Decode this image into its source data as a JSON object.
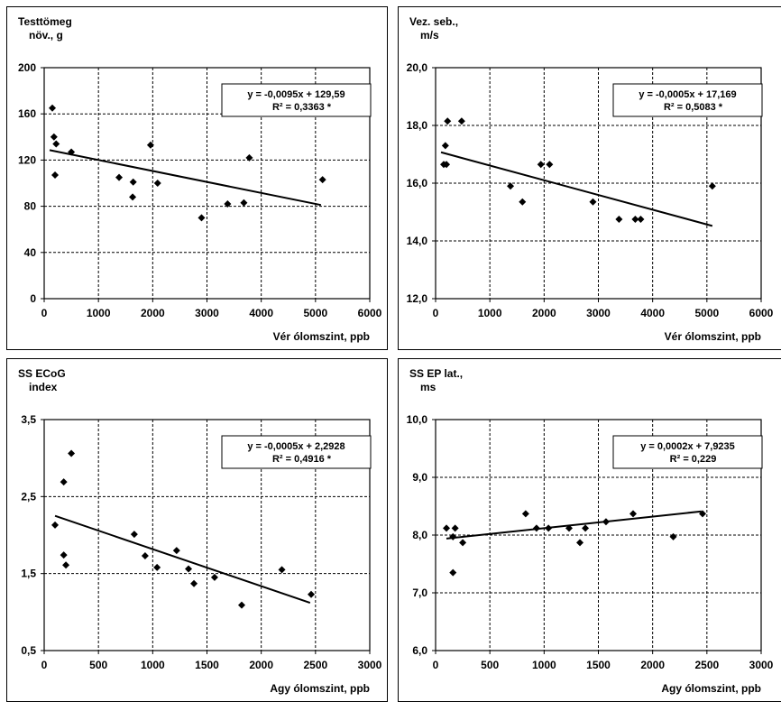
{
  "chart_data": [
    {
      "type": "scatter",
      "ylabel_lines": [
        "Testtömeg",
        "növ., g"
      ],
      "xlabel": "Vér ólomszint, ppb",
      "xlim": [
        0,
        6000
      ],
      "ylim": [
        0,
        200
      ],
      "xticks": [
        0,
        1000,
        2000,
        3000,
        4000,
        5000,
        6000
      ],
      "yticks": [
        0,
        40,
        80,
        120,
        160,
        200
      ],
      "xtick_labels": [
        "0",
        "1000",
        "2000",
        "3000",
        "4000",
        "5000",
        "6000"
      ],
      "ytick_labels": [
        "0",
        "40",
        "80",
        "120",
        "160",
        "200"
      ],
      "grid": true,
      "points": [
        {
          "x": 150,
          "y": 165
        },
        {
          "x": 180,
          "y": 140
        },
        {
          "x": 220,
          "y": 134
        },
        {
          "x": 200,
          "y": 107
        },
        {
          "x": 500,
          "y": 127
        },
        {
          "x": 1380,
          "y": 105
        },
        {
          "x": 1640,
          "y": 101
        },
        {
          "x": 1630,
          "y": 88
        },
        {
          "x": 1960,
          "y": 133
        },
        {
          "x": 2090,
          "y": 100
        },
        {
          "x": 2900,
          "y": 70
        },
        {
          "x": 3380,
          "y": 82
        },
        {
          "x": 3680,
          "y": 83
        },
        {
          "x": 3780,
          "y": 122
        },
        {
          "x": 5130,
          "y": 103
        }
      ],
      "trendline": {
        "x": [
          100,
          5100
        ],
        "y": [
          128.6,
          81.1
        ]
      },
      "equation": "y = -0,0095x + 129,59",
      "r2": "R² = 0,3363 *",
      "annotation_box": "top-right"
    },
    {
      "type": "scatter",
      "ylabel_lines": [
        "Vez. seb.,",
        "m/s"
      ],
      "xlabel": "Vér ólomszint, ppb",
      "xlim": [
        0,
        6000
      ],
      "ylim": [
        12,
        20
      ],
      "xticks": [
        0,
        1000,
        2000,
        3000,
        4000,
        5000,
        6000
      ],
      "yticks": [
        12,
        14,
        16,
        18,
        20
      ],
      "xtick_labels": [
        "0",
        "1000",
        "2000",
        "3000",
        "4000",
        "5000",
        "6000"
      ],
      "ytick_labels": [
        "12,0",
        "14,0",
        "16,0",
        "18,0",
        "20,0"
      ],
      "grid": true,
      "points": [
        {
          "x": 150,
          "y": 16.65
        },
        {
          "x": 200,
          "y": 16.65
        },
        {
          "x": 180,
          "y": 17.3
        },
        {
          "x": 220,
          "y": 18.15
        },
        {
          "x": 480,
          "y": 18.15
        },
        {
          "x": 1380,
          "y": 15.9
        },
        {
          "x": 1600,
          "y": 15.35
        },
        {
          "x": 1940,
          "y": 16.65
        },
        {
          "x": 2100,
          "y": 16.65
        },
        {
          "x": 2900,
          "y": 15.35
        },
        {
          "x": 3380,
          "y": 14.75
        },
        {
          "x": 3680,
          "y": 14.75
        },
        {
          "x": 3780,
          "y": 14.75
        },
        {
          "x": 5100,
          "y": 15.9
        }
      ],
      "trendline": {
        "x": [
          100,
          5100
        ],
        "y": [
          17.07,
          14.52
        ]
      },
      "equation": "y = -0,0005x + 17,169",
      "r2": "R² = 0,5083 *",
      "annotation_box": "top-right"
    },
    {
      "type": "scatter",
      "ylabel_lines": [
        "SS ECoG",
        "index"
      ],
      "xlabel": "Agy ólomszint, ppb",
      "xlim": [
        0,
        3000
      ],
      "ylim": [
        0.5,
        3.5
      ],
      "xticks": [
        0,
        500,
        1000,
        1500,
        2000,
        2500,
        3000
      ],
      "yticks": [
        0.5,
        1.5,
        2.5,
        3.5
      ],
      "xtick_labels": [
        "0",
        "500",
        "1000",
        "1500",
        "2000",
        "2500",
        "3000"
      ],
      "ytick_labels": [
        "0,5",
        "1,5",
        "2,5",
        "3,5"
      ],
      "grid": true,
      "points": [
        {
          "x": 100,
          "y": 2.13
        },
        {
          "x": 180,
          "y": 2.69
        },
        {
          "x": 250,
          "y": 3.06
        },
        {
          "x": 180,
          "y": 1.74
        },
        {
          "x": 200,
          "y": 1.61
        },
        {
          "x": 830,
          "y": 2.01
        },
        {
          "x": 930,
          "y": 1.73
        },
        {
          "x": 1040,
          "y": 1.58
        },
        {
          "x": 1220,
          "y": 1.8
        },
        {
          "x": 1330,
          "y": 1.56
        },
        {
          "x": 1380,
          "y": 1.37
        },
        {
          "x": 1570,
          "y": 1.45
        },
        {
          "x": 1820,
          "y": 1.09
        },
        {
          "x": 2190,
          "y": 1.55
        },
        {
          "x": 2460,
          "y": 1.23
        }
      ],
      "trendline": {
        "x": [
          100,
          2450
        ],
        "y": [
          2.25,
          1.12
        ]
      },
      "equation": "y = -0,0005x + 2,2928",
      "r2": "R² = 0,4916 *",
      "annotation_box": "top-right"
    },
    {
      "type": "scatter",
      "ylabel_lines": [
        "SS EP lat.,",
        "ms"
      ],
      "xlabel": "Agy ólomszint, ppb",
      "xlim": [
        0,
        3000
      ],
      "ylim": [
        6,
        10
      ],
      "xticks": [
        0,
        500,
        1000,
        1500,
        2000,
        2500,
        3000
      ],
      "yticks": [
        6,
        7,
        8,
        9,
        10
      ],
      "xtick_labels": [
        "0",
        "500",
        "1000",
        "1500",
        "2000",
        "2500",
        "3000"
      ],
      "ytick_labels": [
        "6,0",
        "7,0",
        "8,0",
        "9,0",
        "10,0"
      ],
      "grid": true,
      "points": [
        {
          "x": 100,
          "y": 8.12
        },
        {
          "x": 180,
          "y": 8.12
        },
        {
          "x": 160,
          "y": 7.97
        },
        {
          "x": 160,
          "y": 7.35
        },
        {
          "x": 250,
          "y": 7.87
        },
        {
          "x": 830,
          "y": 8.37
        },
        {
          "x": 930,
          "y": 8.12
        },
        {
          "x": 1040,
          "y": 8.12
        },
        {
          "x": 1230,
          "y": 8.12
        },
        {
          "x": 1330,
          "y": 7.87
        },
        {
          "x": 1380,
          "y": 8.12
        },
        {
          "x": 1570,
          "y": 8.23
        },
        {
          "x": 1820,
          "y": 8.37
        },
        {
          "x": 2190,
          "y": 7.97
        },
        {
          "x": 2460,
          "y": 8.37
        }
      ],
      "trendline": {
        "x": [
          100,
          2450
        ],
        "y": [
          7.94,
          8.41
        ]
      },
      "equation": "y = 0,0002x + 7,9235",
      "r2": "R² = 0,229",
      "annotation_box": "top-right"
    }
  ]
}
